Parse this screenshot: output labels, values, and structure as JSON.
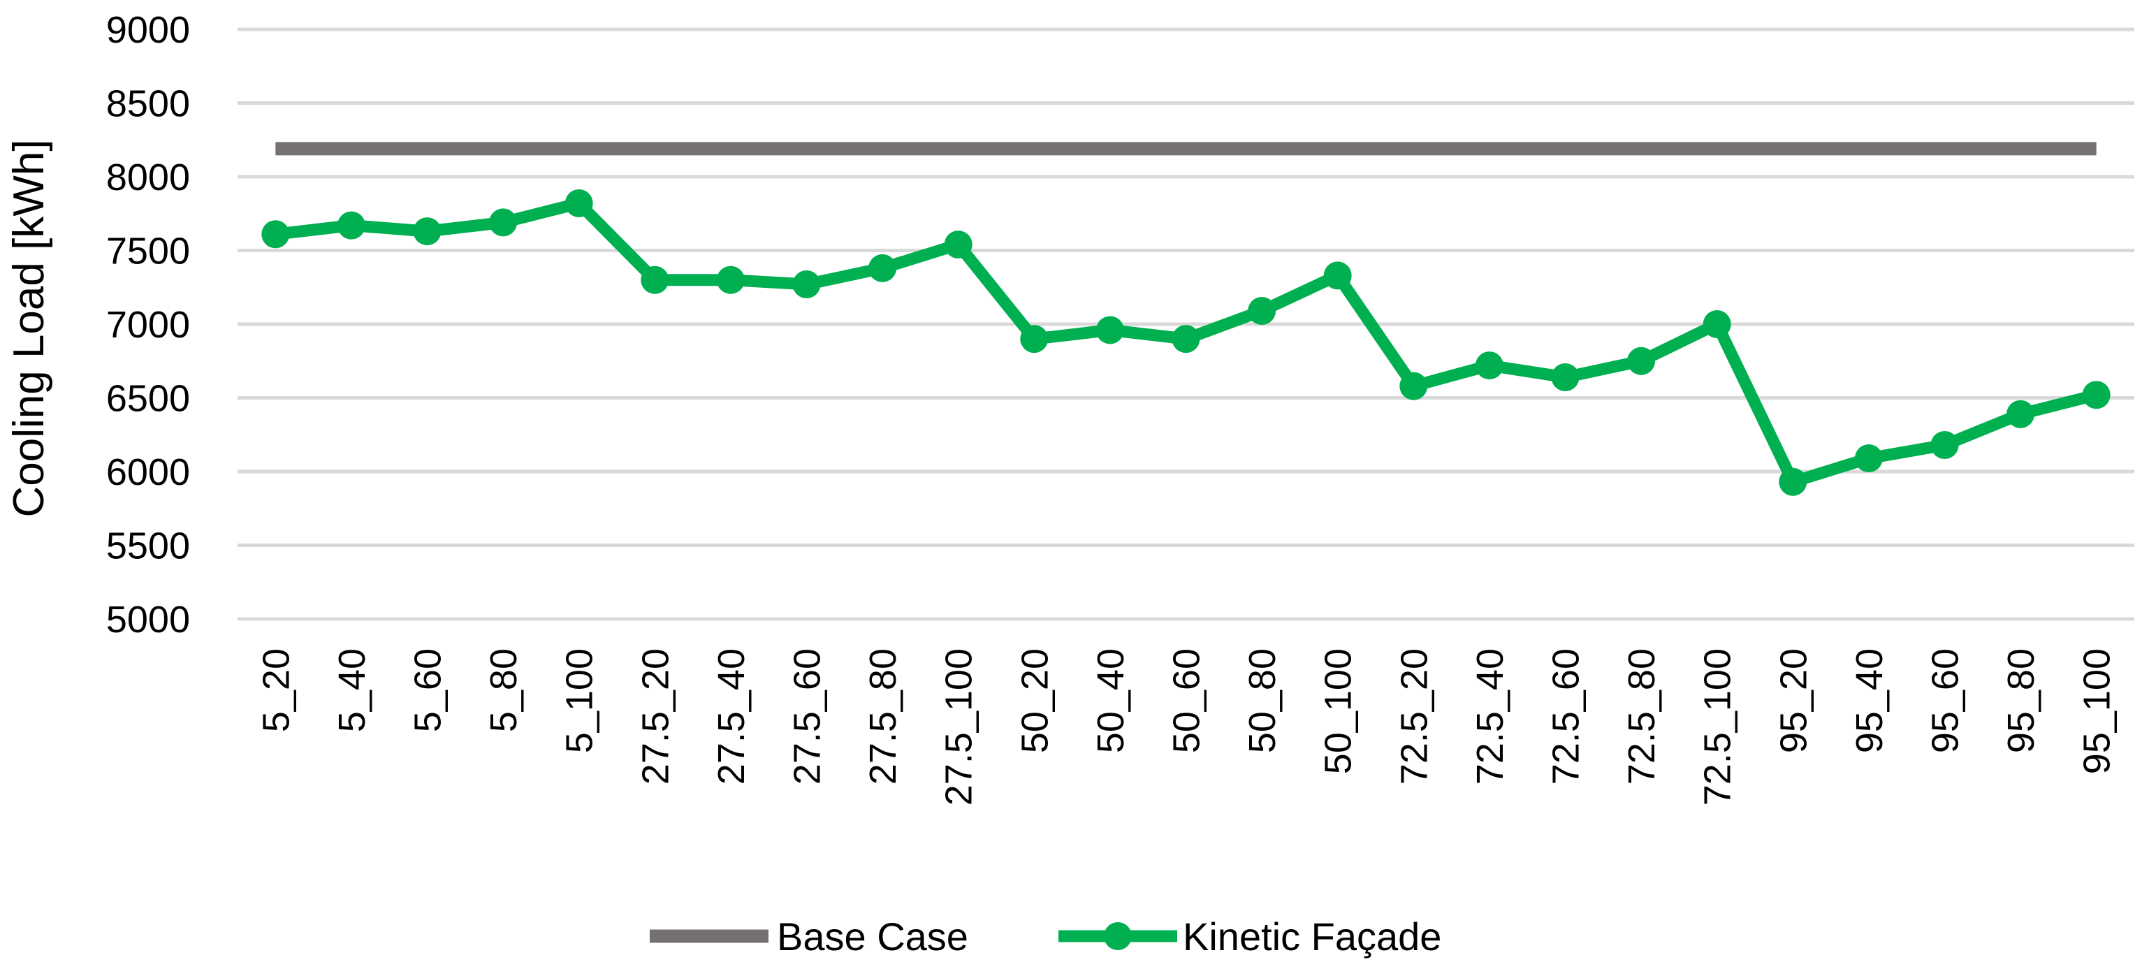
{
  "chart_data": {
    "type": "line",
    "title": "",
    "xlabel": "",
    "ylabel": "Cooling Load [kWh]",
    "ylim": [
      5000,
      9000
    ],
    "yticks": [
      5000,
      5500,
      6000,
      6500,
      7000,
      7500,
      8000,
      8500,
      9000
    ],
    "grid": true,
    "legend_position": "bottom",
    "categories": [
      "5_20",
      "5_40",
      "5_60",
      "5_80",
      "5_100",
      "27.5_20",
      "27.5_40",
      "27.5_60",
      "27.5_80",
      "27.5_100",
      "50_20",
      "50_40",
      "50_60",
      "50_80",
      "50_100",
      "72.5_20",
      "72.5_40",
      "72.5_60",
      "72.5_80",
      "72.5_100",
      "95_20",
      "95_40",
      "95_60",
      "95_80",
      "95_100"
    ],
    "series": [
      {
        "name": "Base Case",
        "color": "#767171",
        "markers": false,
        "values": [
          8190,
          8190,
          8190,
          8190,
          8190,
          8190,
          8190,
          8190,
          8190,
          8190,
          8190,
          8190,
          8190,
          8190,
          8190,
          8190,
          8190,
          8190,
          8190,
          8190,
          8190,
          8190,
          8190,
          8190,
          8190
        ]
      },
      {
        "name": "Kinetic Façade",
        "color": "#00b050",
        "markers": true,
        "values": [
          7610,
          7670,
          7630,
          7690,
          7820,
          7300,
          7300,
          7270,
          7380,
          7540,
          6900,
          6960,
          6900,
          7090,
          7330,
          6580,
          6720,
          6640,
          6750,
          7000,
          5930,
          6090,
          6180,
          6390,
          6520
        ]
      }
    ]
  }
}
